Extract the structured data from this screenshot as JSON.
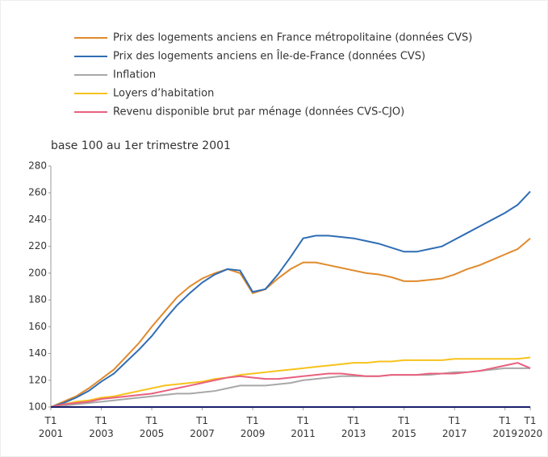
{
  "chart_data": {
    "type": "line",
    "subtitle": "base 100 au 1er trimestre 2001",
    "x": [
      2001,
      2001.5,
      2002,
      2002.5,
      2003,
      2003.5,
      2004,
      2004.5,
      2005,
      2005.5,
      2006,
      2006.5,
      2007,
      2007.5,
      2008,
      2008.5,
      2009,
      2009.5,
      2010,
      2010.5,
      2011,
      2011.5,
      2012,
      2012.5,
      2013,
      2013.5,
      2014,
      2014.5,
      2015,
      2015.5,
      2016,
      2016.5,
      2017,
      2017.5,
      2018,
      2018.5,
      2019,
      2019.5,
      2020
    ],
    "series": [
      {
        "name": "Prix des logements anciens en France métropolitaine (données CVS)",
        "color": "#e08a2c",
        "values": [
          100,
          104,
          108,
          114,
          121,
          128,
          138,
          148,
          160,
          171,
          182,
          190,
          196,
          200,
          203,
          200,
          185,
          188,
          196,
          203,
          208,
          208,
          206,
          204,
          202,
          200,
          199,
          197,
          194,
          194,
          195,
          196,
          199,
          203,
          206,
          210,
          214,
          218,
          226
        ]
      },
      {
        "name": "Prix des logements anciens en Île-de-France (données CVS)",
        "color": "#2f6db5",
        "values": [
          100,
          103,
          107,
          112,
          119,
          125,
          134,
          143,
          153,
          165,
          176,
          185,
          193,
          199,
          203,
          202,
          186,
          188,
          199,
          212,
          226,
          228,
          228,
          227,
          226,
          224,
          222,
          219,
          216,
          216,
          218,
          220,
          225,
          230,
          235,
          240,
          245,
          251,
          261
        ]
      },
      {
        "name": "Inflation",
        "color": "#a8a8a8",
        "values": [
          100,
          101,
          102,
          103,
          104,
          105,
          106,
          107,
          108,
          109,
          110,
          110,
          111,
          112,
          114,
          116,
          116,
          116,
          117,
          118,
          120,
          121,
          122,
          123,
          123,
          123,
          123,
          124,
          124,
          124,
          124,
          125,
          126,
          126,
          127,
          128,
          129,
          129,
          129
        ]
      },
      {
        "name": "Loyers d’habitation",
        "color": "#f7c21b",
        "values": [
          100,
          102,
          104,
          105,
          107,
          108,
          110,
          112,
          114,
          116,
          117,
          118,
          119,
          121,
          122,
          124,
          125,
          126,
          127,
          128,
          129,
          130,
          131,
          132,
          133,
          133,
          134,
          134,
          135,
          135,
          135,
          135,
          136,
          136,
          136,
          136,
          136,
          136,
          137
        ]
      },
      {
        "name": "Revenu disponible brut par ménage (données CVS-CJO)",
        "color": "#e8607e",
        "values": [
          100,
          102,
          103,
          104,
          106,
          107,
          108,
          109,
          110,
          112,
          114,
          116,
          118,
          120,
          122,
          123,
          122,
          121,
          121,
          122,
          123,
          124,
          125,
          125,
          124,
          123,
          123,
          124,
          124,
          124,
          125,
          125,
          125,
          126,
          127,
          129,
          131,
          133,
          129
        ]
      }
    ],
    "xlim": [
      2001,
      2020
    ],
    "ylim": [
      100,
      280
    ],
    "yticks": [
      100,
      120,
      140,
      160,
      180,
      200,
      220,
      240,
      260,
      280
    ],
    "xticks": [
      {
        "value": 2001,
        "label": "T1 2001"
      },
      {
        "value": 2003,
        "label": "T1 2003"
      },
      {
        "value": 2005,
        "label": "T1 2005"
      },
      {
        "value": 2007,
        "label": "T1 2007"
      },
      {
        "value": 2009,
        "label": "T1 2009"
      },
      {
        "value": 2011,
        "label": "T1 2011"
      },
      {
        "value": 2013,
        "label": "T1 2013"
      },
      {
        "value": 2015,
        "label": "T1 2015"
      },
      {
        "value": 2017,
        "label": "T1 2017"
      },
      {
        "value": 2019,
        "label": "T1 2019"
      },
      {
        "value": 2020,
        "label": "T1 2020"
      }
    ],
    "grid": false
  }
}
